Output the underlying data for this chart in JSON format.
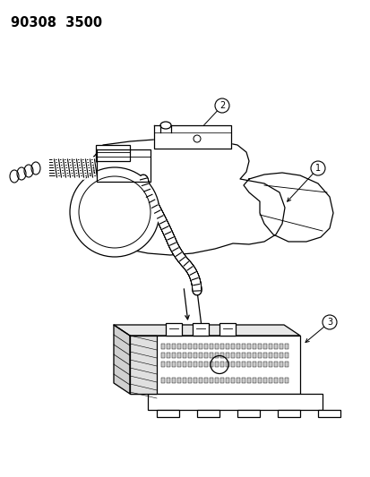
{
  "title": "90308  3500",
  "bg_color": "#ffffff",
  "line_color": "#000000",
  "figsize": [
    4.14,
    5.33
  ],
  "dpi": 100,
  "title_fontsize": 10.5
}
